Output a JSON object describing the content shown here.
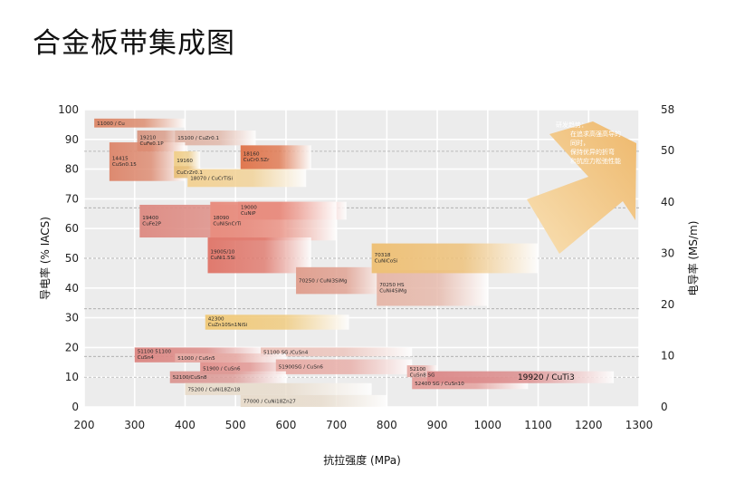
{
  "title": "合金板带集成图",
  "chart_data": {
    "type": "range",
    "xlabel": "抗拉强度 (MPa)",
    "ylabel_left": "导电率 (% IACS)",
    "ylabel_right": "电导率 (MS/m)",
    "xlim": [
      200,
      1300
    ],
    "ylim": [
      0,
      100
    ],
    "x_ticks": [
      "200",
      "300",
      "400",
      "500",
      "600",
      "700",
      "800",
      "900",
      "1000",
      "1100",
      "1200",
      "1300"
    ],
    "y_ticks_left": [
      "0",
      "10",
      "20",
      "30",
      "40",
      "50",
      "60",
      "70",
      "80",
      "90",
      "100"
    ],
    "y_ticks_right": [
      "0",
      "10",
      "20",
      "30",
      "40",
      "50",
      "58"
    ],
    "right_axis_max": 58,
    "dashed_levels": [
      10,
      17,
      33,
      50,
      67,
      86
    ],
    "arrow_note": [
      "研发趋势：",
      "在追求高强高导的",
      "同时，",
      "保持优异的折弯",
      "和抗应力松弛性能"
    ],
    "alloys": [
      {
        "label": "11000 / Cu",
        "x": [
          220,
          400
        ],
        "y": [
          94,
          97
        ],
        "color": "#dc8a6c"
      },
      {
        "label": "19210\nCuFe0.1P",
        "x": [
          305,
          405
        ],
        "y": [
          86,
          93
        ],
        "color": "#d99a86"
      },
      {
        "label": "15100 / CuZr0.1",
        "x": [
          380,
          540
        ],
        "y": [
          88,
          93
        ],
        "color": "#e0b6a8"
      },
      {
        "label": "14415\nCuSn0.15",
        "x": [
          250,
          400
        ],
        "y": [
          76,
          89
        ],
        "color": "#dd8a70"
      },
      {
        "label": "19160",
        "x": [
          378,
          430
        ],
        "y": [
          80,
          86
        ],
        "color": "#f0cf8c"
      },
      {
        "label": "18160\nCuCr0.5Zr",
        "x": [
          510,
          650
        ],
        "y": [
          80,
          88
        ],
        "color": "#e07850"
      },
      {
        "label": "CuCrZr0.1",
        "x": [
          378,
          430
        ],
        "y": [
          77,
          81
        ],
        "color": "#e8c07c"
      },
      {
        "label": "18070 / CuCrTiSi",
        "x": [
          405,
          640
        ],
        "y": [
          74,
          80
        ],
        "color": "#f2d296"
      },
      {
        "label": "19400\nCuFe2P",
        "x": [
          310,
          600
        ],
        "y": [
          57,
          68
        ],
        "color": "#de8e86"
      },
      {
        "label": "19000\nCuNiP",
        "x": [
          505,
          720
        ],
        "y": [
          63,
          69
        ],
        "color": "#e8847a"
      },
      {
        "label": "18090\nCuNiSnCrTi",
        "x": [
          450,
          700
        ],
        "y": [
          56,
          69
        ],
        "color": "#e88e80"
      },
      {
        "label": "19005/10\nCuNi1.5Si",
        "x": [
          445,
          650
        ],
        "y": [
          45,
          57
        ],
        "color": "#e07a6e"
      },
      {
        "label": "70250 / CuNi3SiMg",
        "x": [
          620,
          800
        ],
        "y": [
          38,
          47
        ],
        "color": "#e0a090"
      },
      {
        "label": "70250 HS\nCuNi4SiMg",
        "x": [
          780,
          1000
        ],
        "y": [
          34,
          46
        ],
        "color": "#e6b8aa"
      },
      {
        "label": "70318\nCuNiCoSi",
        "x": [
          770,
          1100
        ],
        "y": [
          45,
          55
        ],
        "color": "#eec178"
      },
      {
        "label": "42300\nCuZn10Sn1NiSi",
        "x": [
          440,
          725
        ],
        "y": [
          26,
          31
        ],
        "color": "#f0ca7c"
      },
      {
        "label": "51100  51100\nCuSn4",
        "x": [
          300,
          560
        ],
        "y": [
          15,
          20
        ],
        "color": "#dc8a86"
      },
      {
        "label": "51100 SG /CuSn4",
        "x": [
          550,
          850
        ],
        "y": [
          17,
          20
        ],
        "color": "#ecc4bc"
      },
      {
        "label": "51000 / CuSn5",
        "x": [
          380,
          600
        ],
        "y": [
          15,
          18
        ],
        "color": "#e6aaa4"
      },
      {
        "label": "51900 / CuSn6",
        "x": [
          430,
          610
        ],
        "y": [
          11,
          15
        ],
        "color": "#e29490"
      },
      {
        "label": "51900SG / CuSn6",
        "x": [
          580,
          850
        ],
        "y": [
          11,
          16
        ],
        "color": "#e8aea8"
      },
      {
        "label": "52100/CuSn8",
        "x": [
          370,
          600
        ],
        "y": [
          8,
          12
        ],
        "color": "#dc9a96"
      },
      {
        "label": "52100\nCuSn8 SG",
        "x": [
          840,
          900
        ],
        "y": [
          10,
          14
        ],
        "color": "#e8aea8"
      },
      {
        "label": "52400 SG / CuSn10",
        "x": [
          850,
          1080
        ],
        "y": [
          6,
          10
        ],
        "color": "#e4a09c"
      },
      {
        "label": "19920 / CuTi3",
        "x": [
          880,
          1250
        ],
        "y": [
          8,
          12
        ],
        "color": "#dc8c8c"
      },
      {
        "label": "75200 / CuNi18Zn18",
        "x": [
          400,
          770
        ],
        "y": [
          4,
          8
        ],
        "color": "#e8dccc"
      },
      {
        "label": "77000 / CuNi18Zn27",
        "x": [
          510,
          800
        ],
        "y": [
          0,
          4
        ],
        "color": "#e8dccc"
      }
    ]
  }
}
